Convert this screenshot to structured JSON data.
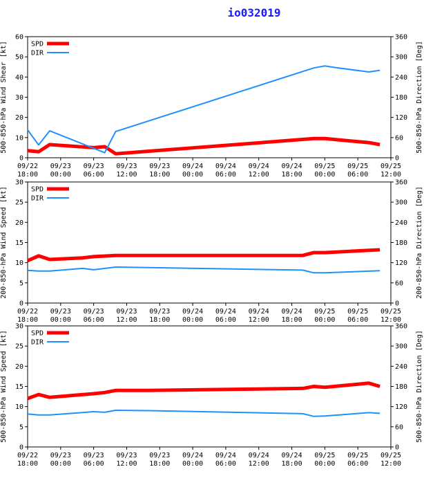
{
  "title": "io032019",
  "colors": {
    "spd": "#ff0000",
    "dir": "#1e90ff",
    "title": "#1a1aff"
  },
  "chart_data": [
    {
      "type": "line",
      "panel": "top",
      "ylabel_left": "500-850-hPa Wind Shear [kt]",
      "ylabel_right": "500-850-hPa Direction [Deg]",
      "ylim_left": [
        0,
        60
      ],
      "ylim_right": [
        0,
        360
      ],
      "left_ticks": [
        "0",
        "10",
        "20",
        "30",
        "40",
        "50",
        "60"
      ],
      "right_ticks": [
        "0",
        "60",
        "120",
        "180",
        "240",
        "300",
        "360"
      ],
      "x_ticks": [
        [
          "09/22",
          "18:00"
        ],
        [
          "09/23",
          "00:00"
        ],
        [
          "09/23",
          "06:00"
        ],
        [
          "09/23",
          "12:00"
        ],
        [
          "09/23",
          "18:00"
        ],
        [
          "09/24",
          "00:00"
        ],
        [
          "09/24",
          "06:00"
        ],
        [
          "09/24",
          "12:00"
        ],
        [
          "09/24",
          "18:00"
        ],
        [
          "09/25",
          "00:00"
        ],
        [
          "09/25",
          "06:00"
        ],
        [
          "09/25",
          "12:00"
        ]
      ],
      "x_hours_range": [
        0,
        66
      ],
      "legend": [
        "SPD",
        "DIR"
      ],
      "series": [
        {
          "name": "SPD",
          "axis": "left",
          "x": [
            0,
            2,
            4,
            12,
            14,
            16,
            52,
            54,
            56,
            62,
            64
          ],
          "y": [
            3.5,
            3,
            6.5,
            5,
            5.5,
            2,
            9.5,
            9.5,
            9,
            7.5,
            6.5
          ]
        },
        {
          "name": "DIR",
          "axis": "right",
          "x": [
            0,
            2,
            4,
            14,
            16,
            52,
            54,
            56,
            62,
            64
          ],
          "y": [
            83,
            38,
            80,
            15,
            78,
            267,
            273,
            268,
            255,
            260
          ]
        }
      ]
    },
    {
      "type": "line",
      "panel": "middle",
      "ylabel_left": "200-850-hPa Wind Speed [kt]",
      "ylabel_right": "200-850-hPa Direction [Deg]",
      "ylim_left": [
        0,
        30
      ],
      "ylim_right": [
        0,
        360
      ],
      "left_ticks": [
        "0",
        "5",
        "10",
        "15",
        "20",
        "25",
        "30"
      ],
      "right_ticks": [
        "0",
        "60",
        "120",
        "180",
        "240",
        "300",
        "360"
      ],
      "x_ticks": [
        [
          "09/22",
          "18:00"
        ],
        [
          "09/23",
          "00:00"
        ],
        [
          "09/23",
          "06:00"
        ],
        [
          "09/23",
          "12:00"
        ],
        [
          "09/23",
          "18:00"
        ],
        [
          "09/24",
          "00:00"
        ],
        [
          "09/24",
          "06:00"
        ],
        [
          "09/24",
          "12:00"
        ],
        [
          "09/24",
          "18:00"
        ],
        [
          "09/25",
          "00:00"
        ],
        [
          "09/25",
          "06:00"
        ],
        [
          "09/25",
          "12:00"
        ]
      ],
      "x_hours_range": [
        0,
        66
      ],
      "legend": [
        "SPD",
        "DIR"
      ],
      "series": [
        {
          "name": "SPD",
          "axis": "left",
          "x": [
            0,
            2,
            4,
            10,
            12,
            16,
            50,
            52,
            54,
            64
          ],
          "y": [
            10.5,
            11.7,
            10.8,
            11.2,
            11.5,
            11.8,
            11.8,
            12.5,
            12.5,
            13.2
          ]
        },
        {
          "name": "DIR",
          "axis": "right",
          "x": [
            0,
            2,
            4,
            10,
            12,
            16,
            50,
            52,
            54,
            64
          ],
          "y": [
            97,
            95,
            95,
            103,
            99,
            107,
            98,
            90,
            90,
            96
          ]
        }
      ]
    },
    {
      "type": "line",
      "panel": "bottom",
      "ylabel_left": "500-850-hPa Wind Speed [kt]",
      "ylabel_right": "500-850-hPa Direction [Deg]",
      "ylim_left": [
        0,
        30
      ],
      "ylim_right": [
        0,
        360
      ],
      "left_ticks": [
        "0",
        "5",
        "10",
        "15",
        "20",
        "25",
        "30"
      ],
      "right_ticks": [
        "0",
        "60",
        "120",
        "180",
        "240",
        "300",
        "360"
      ],
      "x_ticks": [
        [
          "09/22",
          "18:00"
        ],
        [
          "09/23",
          "00:00"
        ],
        [
          "09/23",
          "06:00"
        ],
        [
          "09/23",
          "12:00"
        ],
        [
          "09/23",
          "18:00"
        ],
        [
          "09/24",
          "00:00"
        ],
        [
          "09/24",
          "06:00"
        ],
        [
          "09/24",
          "12:00"
        ],
        [
          "09/24",
          "18:00"
        ],
        [
          "09/25",
          "00:00"
        ],
        [
          "09/25",
          "06:00"
        ],
        [
          "09/25",
          "12:00"
        ]
      ],
      "x_hours_range": [
        0,
        66
      ],
      "legend": [
        "SPD",
        "DIR"
      ],
      "series": [
        {
          "name": "SPD",
          "axis": "left",
          "x": [
            0,
            2,
            4,
            12,
            14,
            16,
            22,
            50,
            52,
            54,
            62,
            64
          ],
          "y": [
            12,
            13,
            12.3,
            13.2,
            13.5,
            14,
            14,
            14.5,
            15,
            14.8,
            15.8,
            15
          ]
        },
        {
          "name": "DIR",
          "axis": "right",
          "x": [
            0,
            2,
            4,
            12,
            14,
            16,
            22,
            50,
            52,
            54,
            62,
            64
          ],
          "y": [
            98,
            95,
            95,
            105,
            103,
            109,
            108,
            99,
            91,
            92,
            102,
            100
          ]
        }
      ]
    }
  ]
}
